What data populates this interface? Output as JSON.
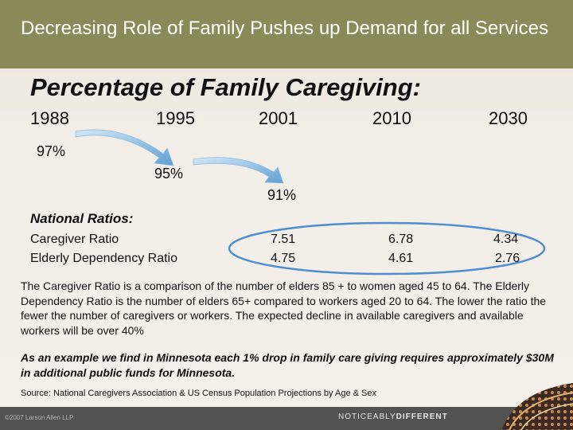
{
  "header": {
    "title": "Decreasing Role of Family Pushes up Demand for all Services"
  },
  "subtitle": "Percentage of  Family Caregiving:",
  "years": [
    "1988",
    "1995",
    "2001",
    "2010",
    "2030"
  ],
  "percentages": [
    "97%",
    "95%",
    "91%"
  ],
  "ratios": {
    "heading": "National Ratios:",
    "rows": [
      {
        "label": "Caregiver Ratio",
        "values": [
          "7.51",
          "6.78",
          "4.34"
        ]
      },
      {
        "label": "Elderly Dependency Ratio",
        "values": [
          "4.75",
          "4.61",
          "2.76"
        ]
      }
    ]
  },
  "description": "The Caregiver Ratio is a comparison of  the number of elders 85 + to women aged 45 to 64. The Elderly Dependency Ratio is the number of elders 65+ compared to workers aged 20 to 64.  The lower the ratio the fewer the number of caregivers or workers.  The expected decline in available caregivers and available workers will be over 40%",
  "example": "As an example we find in Minnesota each 1% drop in family care giving requires approximately  $30M in additional public funds for Minnesota.",
  "source": "Source: National Caregivers Association & US Census Population Projections by Age & Sex",
  "footer": {
    "copyright": "©2007 Larson Allen LLP",
    "brand_light": "NOTICEABLY",
    "brand_bold": "DIFFERENT"
  },
  "colors": {
    "title_bar": "#8a8a58",
    "arrow": "#6aa8d8",
    "ellipse": "#4f8fcf",
    "footer": "#52524f"
  }
}
